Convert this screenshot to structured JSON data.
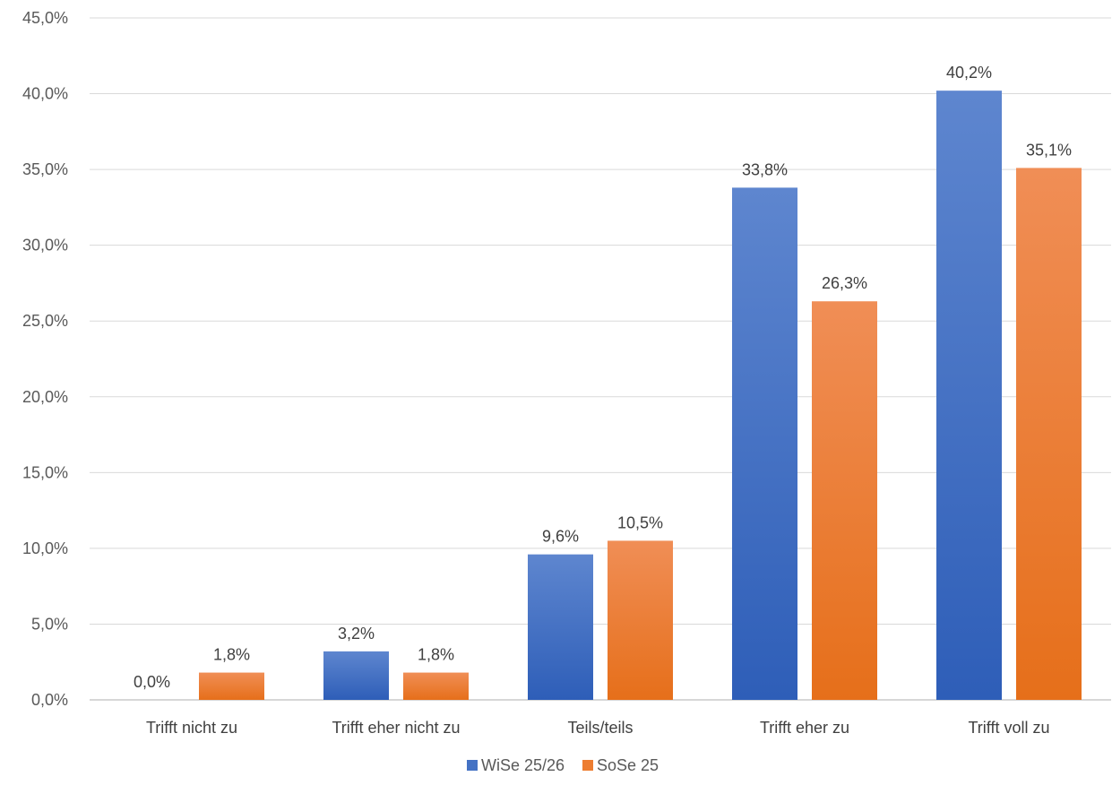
{
  "chart_data": {
    "type": "bar",
    "title": "",
    "xlabel": "",
    "ylabel": "",
    "categories": [
      "Trifft nicht zu",
      "Trifft eher nicht zu",
      "Teils/teils",
      "Trifft eher zu",
      "Trifft voll zu"
    ],
    "series": [
      {
        "name": "WiSe 25/26",
        "values": [
          0.0,
          3.2,
          9.6,
          33.8,
          40.2
        ],
        "labels": [
          "0,0%",
          "3,2%",
          "9,6%",
          "33,8%",
          "40,2%"
        ],
        "color": "#4472C4"
      },
      {
        "name": "SoSe 25",
        "values": [
          1.8,
          1.8,
          10.5,
          26.3,
          35.1
        ],
        "labels": [
          "1,8%",
          "1,8%",
          "10,5%",
          "26,3%",
          "35,1%"
        ],
        "color": "#ED7D31"
      }
    ],
    "ylim": [
      0,
      45
    ],
    "yticks": [
      0,
      5,
      10,
      15,
      20,
      25,
      30,
      35,
      40,
      45
    ],
    "ytick_labels": [
      "0,0%",
      "5,0%",
      "10,0%",
      "15,0%",
      "20,0%",
      "25,0%",
      "30,0%",
      "35,0%",
      "40,0%",
      "45,0%"
    ],
    "grid": true,
    "legend_position": "bottom"
  }
}
